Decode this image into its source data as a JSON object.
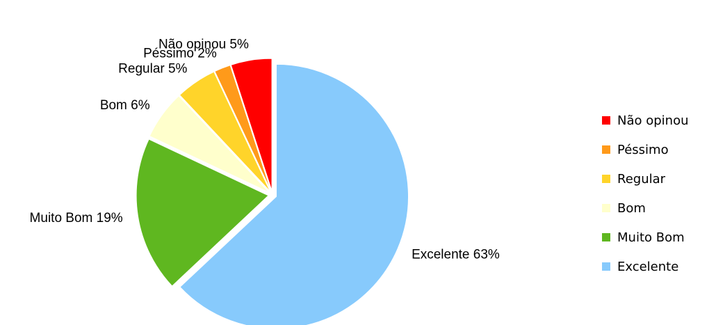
{
  "chart_data": {
    "type": "pie",
    "categories": [
      "Excelente",
      "Muito Bom",
      "Bom",
      "Regular",
      "Péssimo",
      "Não opinou"
    ],
    "values": [
      63,
      19,
      6,
      5,
      2,
      5
    ],
    "value_labels": [
      "Excelente 63%",
      "Muito Bom 19%",
      "Bom 6%",
      "Regular 5%",
      "Péssimo 2%",
      "Não opinou 5%"
    ],
    "colors": [
      "#87cafc",
      "#5fb720",
      "#ffffcc",
      "#ffd42a",
      "#ff9a1a",
      "#ff0000"
    ],
    "legend": "right"
  }
}
